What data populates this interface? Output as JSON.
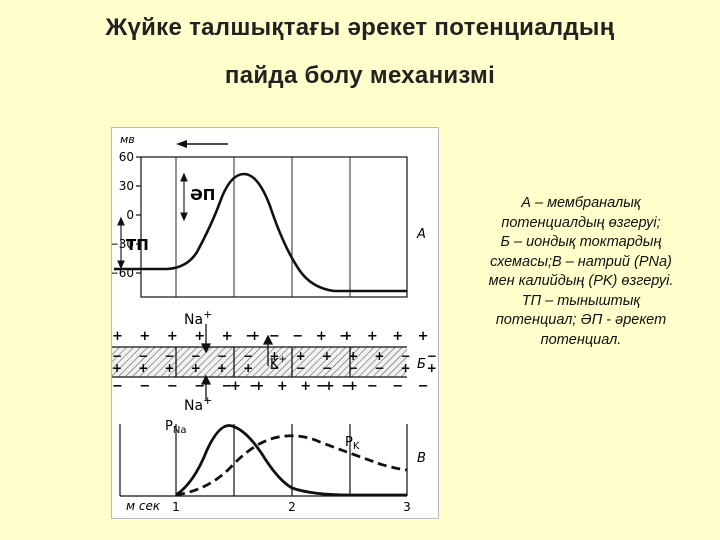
{
  "slide": {
    "title_line1": "Жүйке талшықтағы әрекет потенциалдың",
    "title_line2": "пайда болу механизмі",
    "legend_lines": [
      "А – мембраналық",
      "потенциалдың өзгеруі;",
      "Б – иондық токтардың",
      "схемасы;В – натрий (PNa)",
      "мен калийдың (PK) өзгеруі.",
      "ТП – тыныштық",
      "потенциал; ӘП - әрекет",
      "потенциал."
    ]
  },
  "figure": {
    "panel_a": {
      "unit_label": "мв",
      "y_ticks": [
        "60",
        "30",
        "0",
        "−30",
        "−60"
      ],
      "label_ap": "ӘП",
      "label_rp": "ТП",
      "panel_letter": "А"
    },
    "panel_b": {
      "na_top": "Na",
      "na_top_sup": "+",
      "k_label": "K",
      "k_sup": "+",
      "na_bottom": "Na",
      "na_bottom_sup": "+",
      "panel_letter": "Б"
    },
    "panel_c": {
      "pna_label": "P",
      "pna_sub": "Na",
      "pk_label": "P",
      "pk_sub": "K",
      "x_unit": "м сек",
      "x_ticks": [
        "1",
        "2",
        "3"
      ],
      "panel_letter": "В"
    }
  }
}
